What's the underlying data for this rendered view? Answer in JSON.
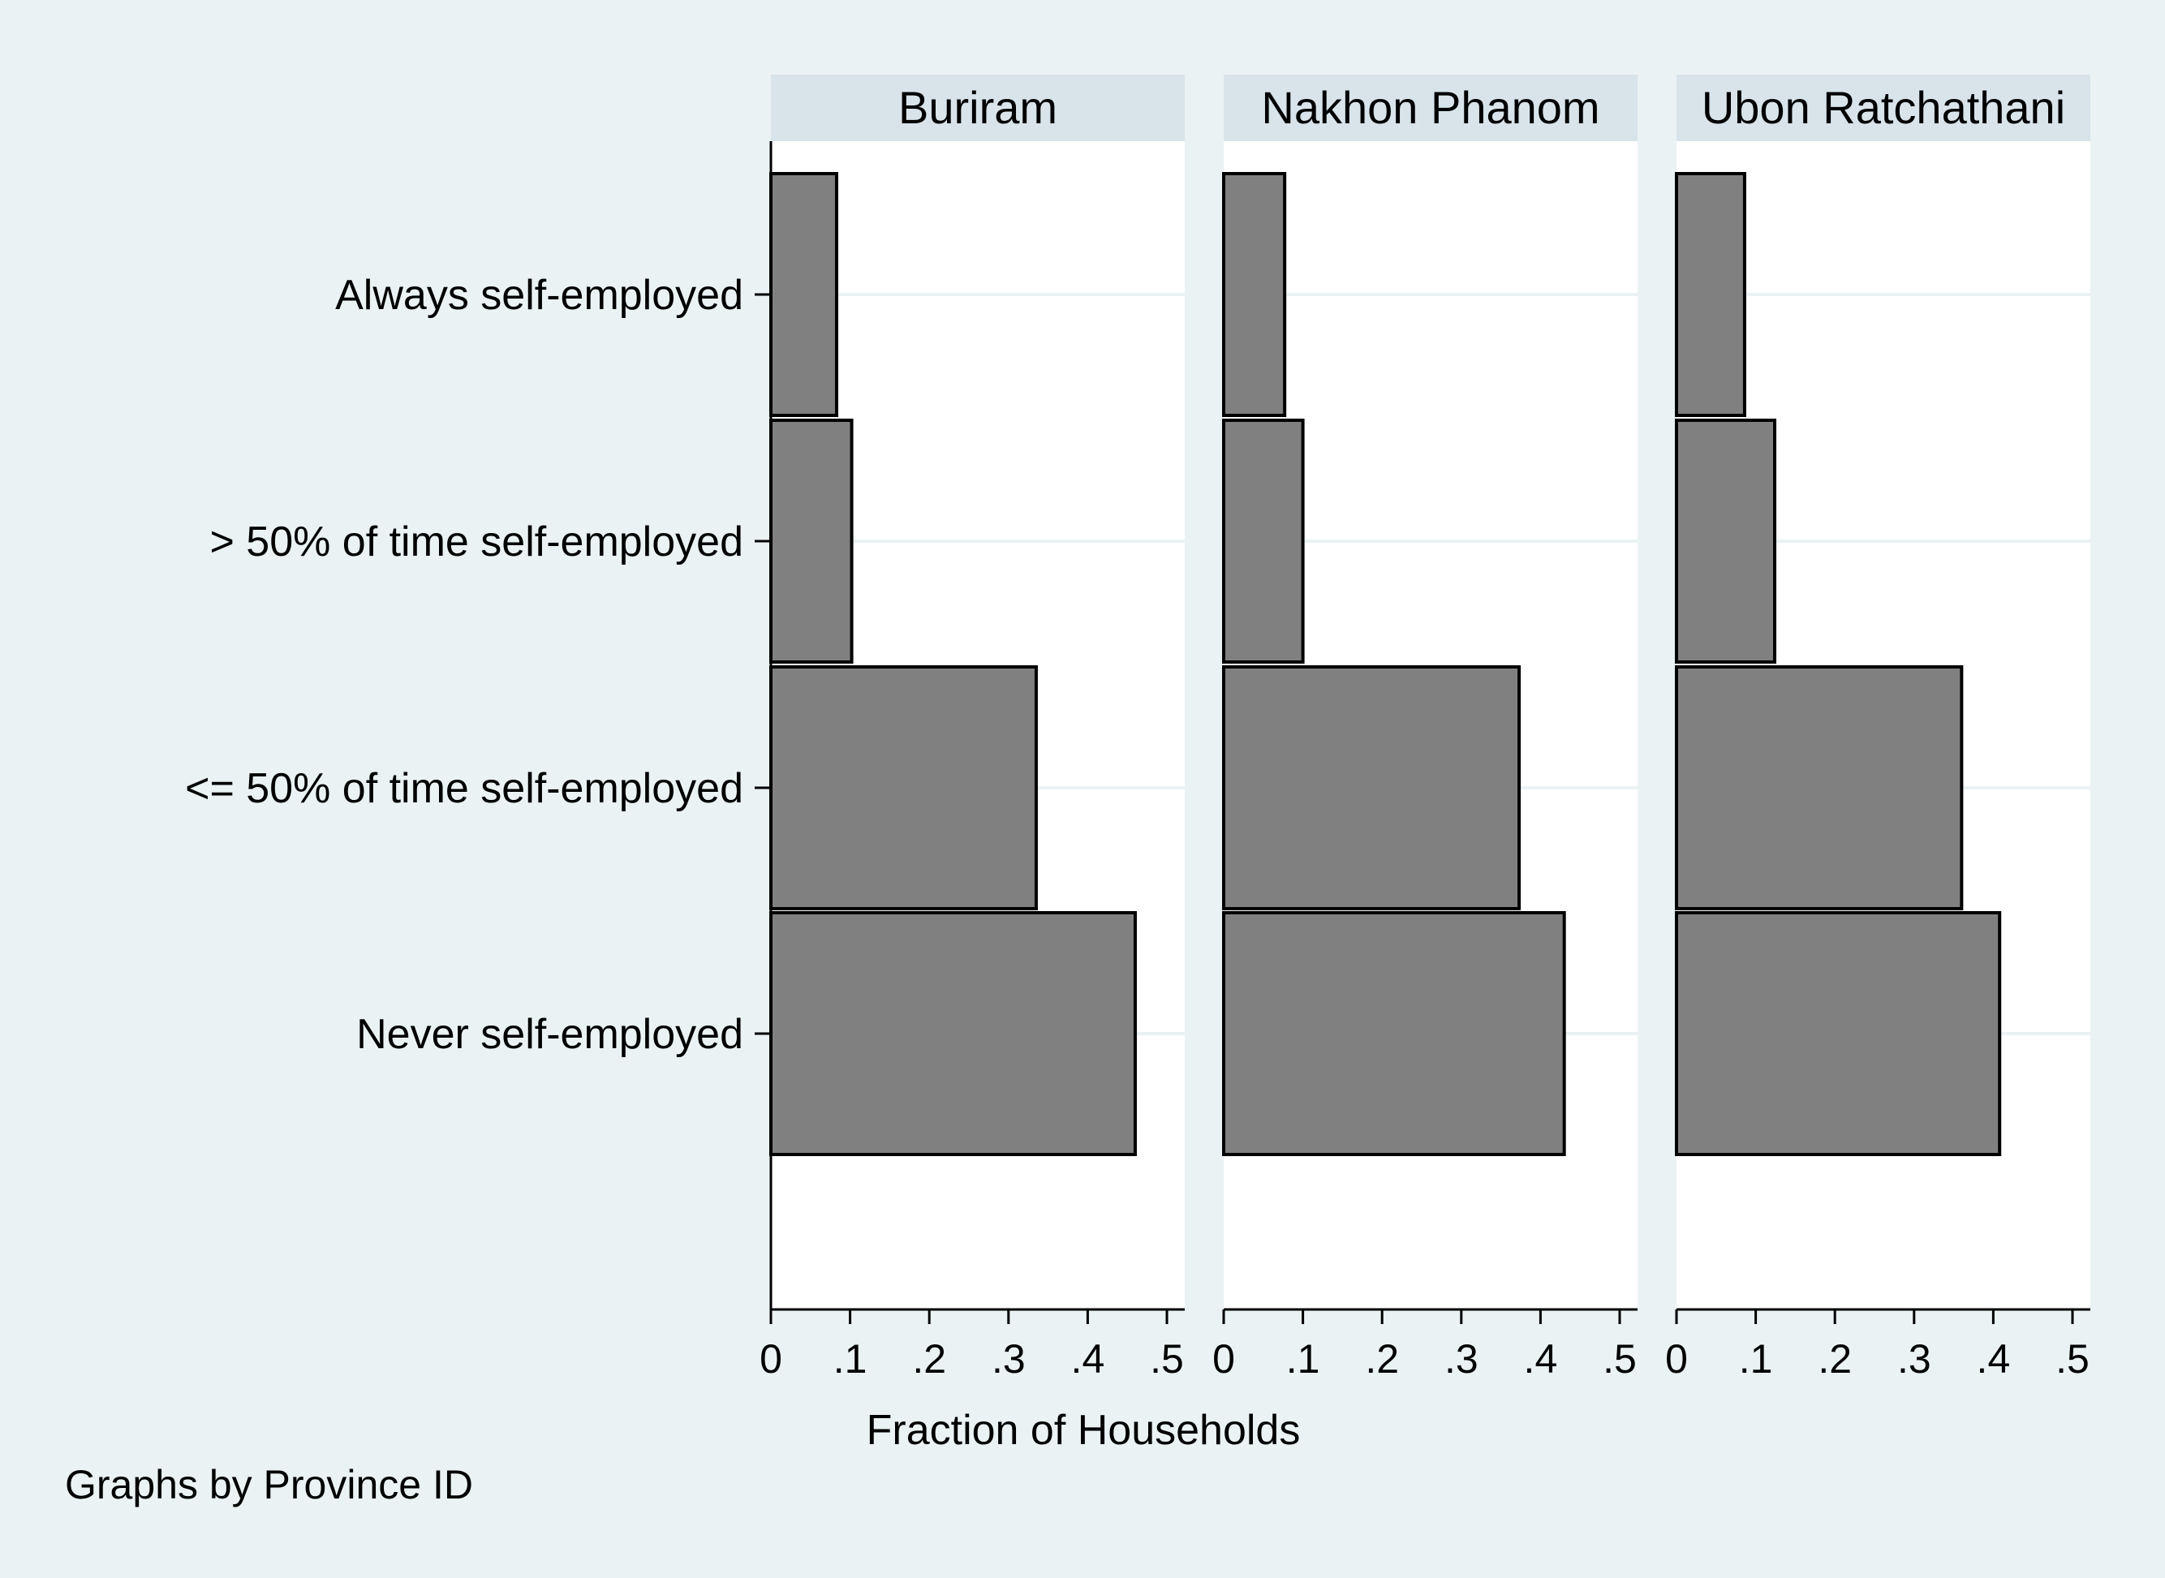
{
  "chart_data": {
    "type": "bar",
    "orientation": "horizontal",
    "categories": [
      "Always self-employed",
      "> 50% of time self-employed",
      "<= 50% of time self-employed",
      "Never self-employed"
    ],
    "xlabel": "Fraction of Households",
    "xlim": [
      0,
      0.53
    ],
    "xticks": [
      0,
      0.1,
      0.2,
      0.3,
      0.4,
      0.5
    ],
    "xtick_labels": [
      "0",
      ".1",
      ".2",
      ".3",
      ".4",
      ".5"
    ],
    "grid": true,
    "panels": [
      {
        "title": "Buriram",
        "values": [
          0.083,
          0.102,
          0.335,
          0.46
        ]
      },
      {
        "title": "Nakhon Phanom",
        "values": [
          0.077,
          0.1,
          0.373,
          0.43
        ]
      },
      {
        "title": "Ubon Ratchathani",
        "values": [
          0.086,
          0.124,
          0.36,
          0.408
        ]
      }
    ],
    "note": "Graphs by Province ID",
    "colors": {
      "background": "#eaf2f3",
      "panel": "#ffffff",
      "strip": "#d8e4ea",
      "bar": "#808080",
      "bar_edge": "#000000",
      "grid": "#eaf2f3"
    }
  }
}
